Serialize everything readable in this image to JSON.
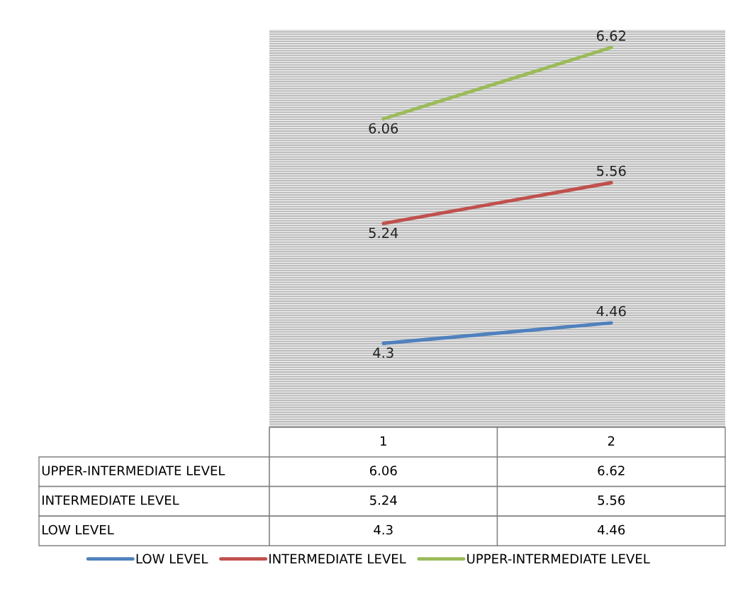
{
  "chart_data": {
    "type": "line",
    "categories": [
      "1",
      "2"
    ],
    "data_labels": true,
    "legend": "bottom",
    "series": [
      {
        "name": "LOW LEVEL",
        "color": "#4f81bd",
        "values": [
          4.3,
          4.46
        ]
      },
      {
        "name": "INTERMEDIATE LEVEL",
        "color": "#c0504d",
        "values": [
          5.24,
          5.56
        ]
      },
      {
        "name": "UPPER-INTERMEDIATE LEVEL",
        "color": "#9bbb59",
        "values": [
          6.06,
          6.62
        ]
      }
    ],
    "annotations": [
      {
        "text": "4.3",
        "x": "1",
        "y": 4.3
      },
      {
        "text": "4.46",
        "x": "2",
        "y": 4.46
      },
      {
        "text": "5.24",
        "x": "1",
        "y": 5.24
      },
      {
        "text": "5.56",
        "x": "2",
        "y": 5.56
      },
      {
        "text": "6.06",
        "x": "1",
        "y": 6.06
      },
      {
        "text": "6.62",
        "x": "2",
        "y": 6.62
      }
    ]
  }
}
